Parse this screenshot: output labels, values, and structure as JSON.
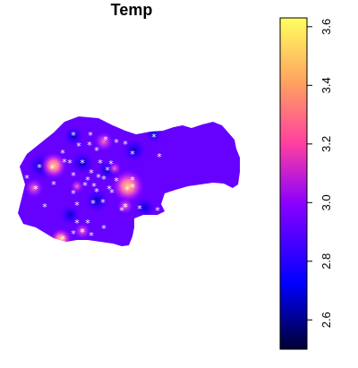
{
  "map": {
    "title": "Temp",
    "legend": {
      "min": 2.5,
      "max": 3.63,
      "ticks": [
        "2.6",
        "2.8",
        "3.0",
        "3.2",
        "3.4",
        "3.6"
      ],
      "tick_values": [
        2.6,
        2.8,
        3.0,
        3.2,
        3.4,
        3.6
      ],
      "colormap": [
        "#000033",
        "#0000ff",
        "#8a00ff",
        "#ff5fa6",
        "#ffb35a",
        "#ffff60"
      ]
    },
    "background_color": "#6600ff",
    "station_marker": "*"
  }
}
